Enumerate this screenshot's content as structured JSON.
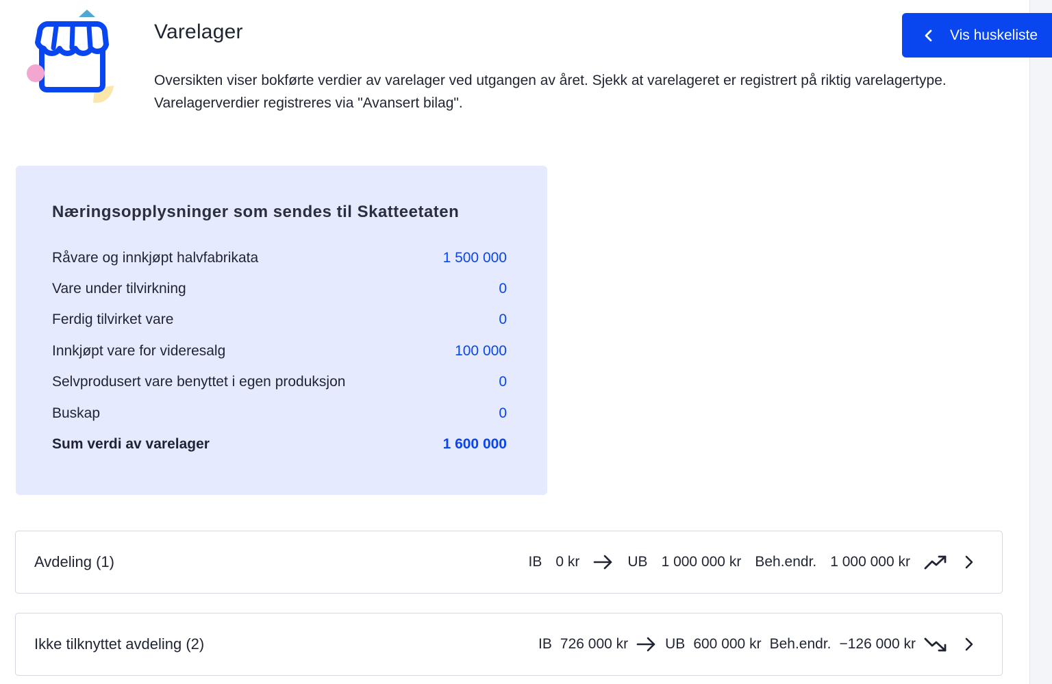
{
  "header": {
    "title": "Varelager",
    "description": "Oversikten viser bokførte verdier av varelager ved utgangen av året. Sjekk at varelageret er registrert på riktig varelagertype. Varelagerverdier registreres via \"Avansert bilag\".",
    "illustration_icon": "shop-icon",
    "checklist_button_label": "Vis huskeliste"
  },
  "summary": {
    "title": "Næringsopplysninger som sendes til Skatteetaten",
    "rows": [
      {
        "label": "Råvare og innkjøpt halvfabrikata",
        "value": "1 500 000"
      },
      {
        "label": "Vare under tilvirkning",
        "value": "0"
      },
      {
        "label": "Ferdig tilvirket vare",
        "value": "0"
      },
      {
        "label": "Innkjøpt vare for videresalg",
        "value": "100 000"
      },
      {
        "label": "Selvprodusert vare benyttet i egen produksjon",
        "value": "0"
      },
      {
        "label": "Buskap",
        "value": "0"
      }
    ],
    "total": {
      "label": "Sum verdi av varelager",
      "value": "1 600 000"
    }
  },
  "departments": [
    {
      "name": "Avdeling (1)",
      "ib_label": "IB",
      "ib_value": "0 kr",
      "ub_label": "UB",
      "ub_value": "1 000 000 kr",
      "change_label": "Beh.endr.",
      "change_value": "1 000 000 kr",
      "trend_icon": "trending-up-icon"
    },
    {
      "name": "Ikke tilknyttet avdeling (2)",
      "ib_label": "IB",
      "ib_value": "726 000 kr",
      "ub_label": "UB",
      "ub_value": "600 000 kr",
      "change_label": "Beh.endr.",
      "change_value": "−126 000 kr",
      "trend_icon": "trending-down-icon"
    }
  ],
  "colors": {
    "accent": "#0a46f0",
    "panel_background": "#e6eaff",
    "text": "#1f2432",
    "border": "#d4d7df"
  }
}
